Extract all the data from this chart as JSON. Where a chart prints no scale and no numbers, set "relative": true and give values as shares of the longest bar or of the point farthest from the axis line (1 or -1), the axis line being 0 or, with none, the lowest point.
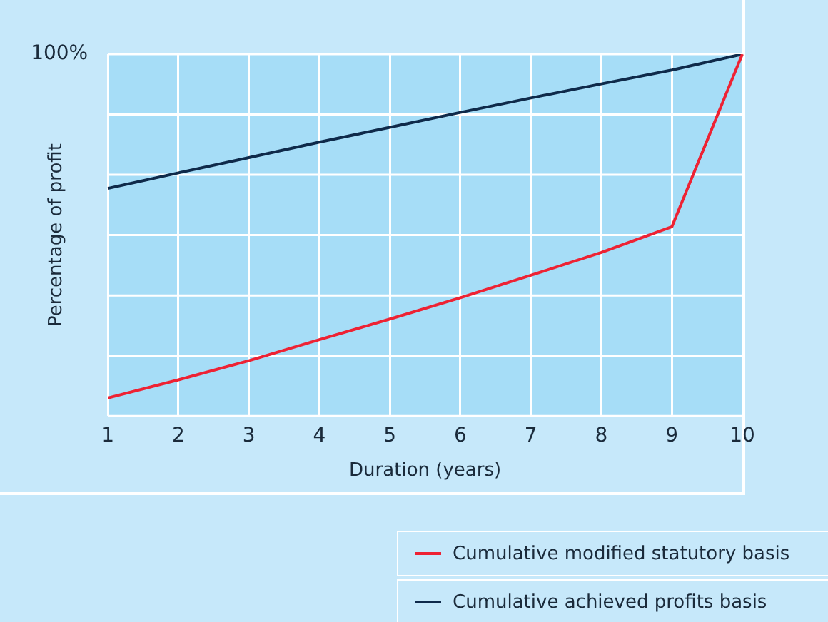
{
  "chart_data": {
    "type": "line",
    "relative": true,
    "ylabel": "Percentage of profit",
    "xlabel": "Duration (years)",
    "annotations": [
      "100%"
    ],
    "categories": [
      "1",
      "2",
      "3",
      "4",
      "5",
      "6",
      "7",
      "8",
      "9",
      "10"
    ],
    "grid": true,
    "legend": "bottom right",
    "series": [
      {
        "name": "Cumulative modified statutory basis",
        "color": "#ee2233",
        "values": [
          0.05,
          0.1,
          0.153,
          0.211,
          0.268,
          0.327,
          0.389,
          0.452,
          0.523,
          1
        ]
      },
      {
        "name": "Cumulative achieved profits basis",
        "color": "#0f2a4a",
        "values": [
          0.629,
          0.672,
          0.714,
          0.757,
          0.798,
          0.839,
          0.879,
          0.918,
          0.956,
          1
        ]
      }
    ]
  }
}
